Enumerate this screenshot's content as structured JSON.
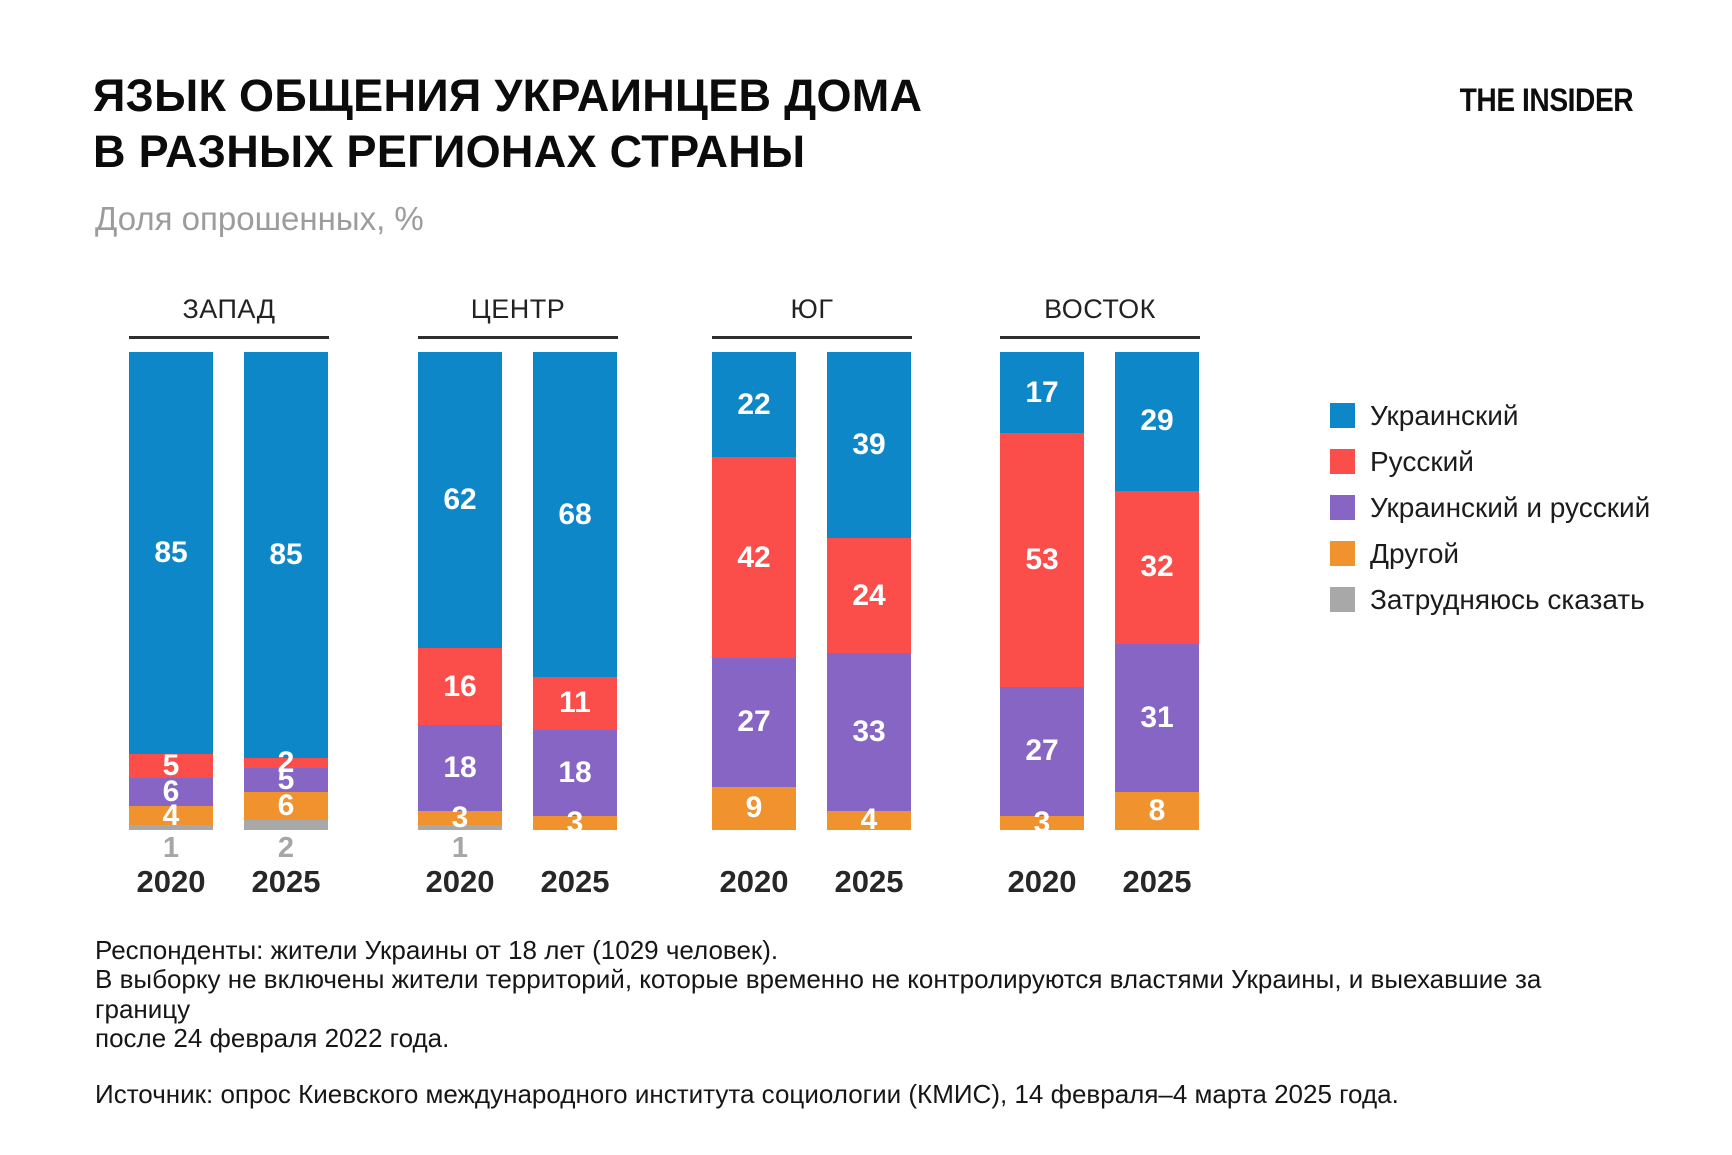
{
  "header": {
    "title_line1": "ЯЗЫК ОБЩЕНИЯ УКРАИНЦЕВ ДОМА",
    "title_line2": "В РАЗНЫХ РЕГИОНАХ СТРАНЫ",
    "subtitle": "Доля опрошенных, %",
    "logo": "THE INSIDER"
  },
  "chart_data": {
    "type": "bar",
    "stacked": true,
    "unit": "%",
    "ylim": [
      0,
      100
    ],
    "legend_position": "right",
    "legend": [
      {
        "key": "ukrainian",
        "label": "Украинский",
        "color": "#0E87C9"
      },
      {
        "key": "russian",
        "label": "Русский",
        "color": "#FB4D4A"
      },
      {
        "key": "mixed",
        "label": "Украинский и русский",
        "color": "#8765C4"
      },
      {
        "key": "other",
        "label": "Другой",
        "color": "#F0932E"
      },
      {
        "key": "undecided",
        "label": "Затрудняюсь сказать",
        "color": "#A8A8A8"
      }
    ],
    "groups": [
      {
        "region": "ЗАПАД",
        "bars": [
          {
            "year": "2020",
            "values": {
              "ukrainian": 85,
              "russian": 5,
              "mixed": 6,
              "other": 4,
              "undecided": 1
            }
          },
          {
            "year": "2025",
            "values": {
              "ukrainian": 85,
              "russian": 2,
              "mixed": 5,
              "other": 6,
              "undecided": 2
            }
          }
        ]
      },
      {
        "region": "ЦЕНТР",
        "bars": [
          {
            "year": "2020",
            "values": {
              "ukrainian": 62,
              "russian": 16,
              "mixed": 18,
              "other": 3,
              "undecided": 1
            }
          },
          {
            "year": "2025",
            "values": {
              "ukrainian": 68,
              "russian": 11,
              "mixed": 18,
              "other": 3,
              "undecided": 0
            }
          }
        ]
      },
      {
        "region": "ЮГ",
        "bars": [
          {
            "year": "2020",
            "values": {
              "ukrainian": 22,
              "russian": 42,
              "mixed": 27,
              "other": 9,
              "undecided": 0
            }
          },
          {
            "year": "2025",
            "values": {
              "ukrainian": 39,
              "russian": 24,
              "mixed": 33,
              "other": 4,
              "undecided": 0
            }
          }
        ]
      },
      {
        "region": "ВОСТОК",
        "bars": [
          {
            "year": "2020",
            "values": {
              "ukrainian": 17,
              "russian": 53,
              "mixed": 27,
              "other": 3,
              "undecided": 0
            }
          },
          {
            "year": "2025",
            "values": {
              "ukrainian": 29,
              "russian": 32,
              "mixed": 31,
              "other": 8,
              "undecided": 0
            }
          }
        ]
      }
    ]
  },
  "footer": {
    "note_respondents": "Респонденты: жители Украины от 18 лет (1029 человек).\nВ выборку не включены жители территорий, которые временно не контролируются властями Украины, и выехавшие за границу\nпосле 24 февраля 2022 года.",
    "note_source": "Источник: опрос Киевского международного института социологии (КМИС), 14 февраля–4 марта 2025 года."
  }
}
